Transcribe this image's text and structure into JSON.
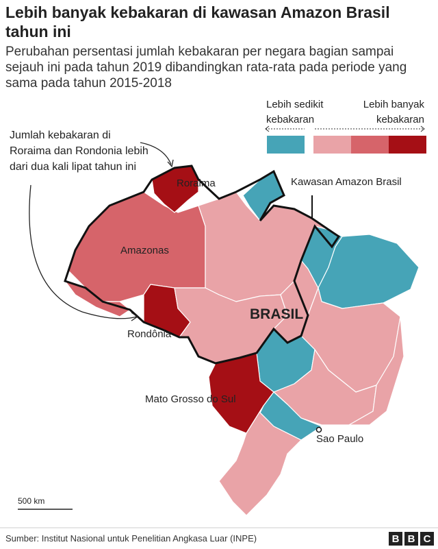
{
  "header": {
    "title": "Lebih banyak kebakaran di kawasan Amazon Brasil tahun ini",
    "subtitle": "Perubahan persentasi jumlah kebakaran per negara bagian sampai sejauh ini pada tahun 2019 dibandingkan rata-rata pada periode yang sama pada tahun 2015-2018"
  },
  "legend": {
    "less": "Lebih sedikit kebakaran",
    "more": "Lebih banyak kebakaran",
    "colors": {
      "less": "#46a4b7",
      "more": [
        "#e9a3a7",
        "#d6646a",
        "#a50f15"
      ]
    }
  },
  "annotation": "Jumlah kebakaran di Roraima dan Rondonia lebih dari dua kali lipat tahun ini",
  "map": {
    "labels": {
      "roraima": "Roraima",
      "amazonas": "Amazonas",
      "rondonia": "Rondônia",
      "brasil": "BRASIL",
      "mato_grosso_do_sul": "Mato Grosso do Sul",
      "sao_paulo": "Sao Paulo",
      "amazon": "Kawasan Amazon Brasil"
    },
    "scale": "500 km"
  },
  "footer": {
    "source": "Sumber: Institut Nasional untuk Penelitian Angkasa Luar (INPE)",
    "logo": [
      "B",
      "B",
      "C"
    ]
  }
}
